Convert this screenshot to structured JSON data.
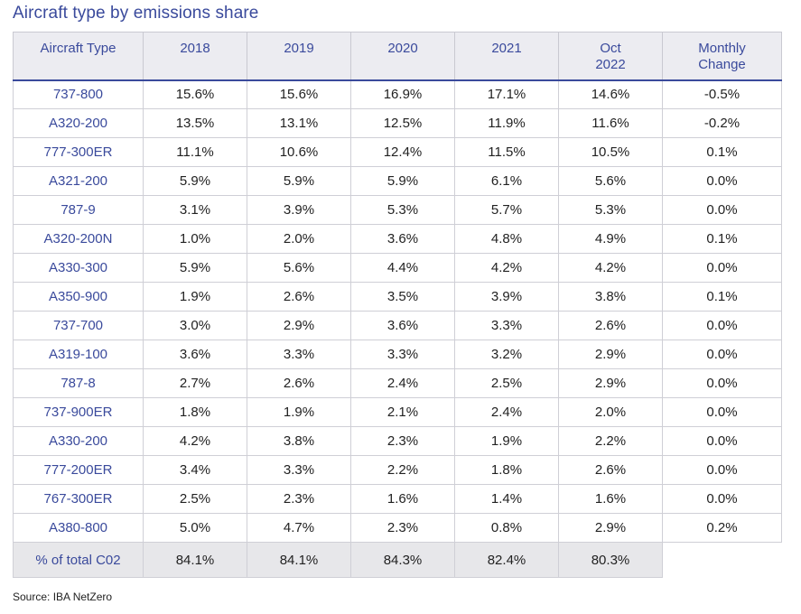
{
  "title": "Aircraft type by emissions share",
  "headers": [
    "Aircraft Type",
    "2018",
    "2019",
    "2020",
    "2021",
    "Oct\n2022",
    "Monthly\nChange"
  ],
  "rows": [
    {
      "type": "737-800",
      "values": [
        "15.6%",
        "15.6%",
        "16.9%",
        "17.1%",
        "14.6%",
        "-0.5%"
      ]
    },
    {
      "type": "A320-200",
      "values": [
        "13.5%",
        "13.1%",
        "12.5%",
        "11.9%",
        "11.6%",
        "-0.2%"
      ]
    },
    {
      "type": "777-300ER",
      "values": [
        "11.1%",
        "10.6%",
        "12.4%",
        "11.5%",
        "10.5%",
        "0.1%"
      ]
    },
    {
      "type": "A321-200",
      "values": [
        "5.9%",
        "5.9%",
        "5.9%",
        "6.1%",
        "5.6%",
        "0.0%"
      ]
    },
    {
      "type": "787-9",
      "values": [
        "3.1%",
        "3.9%",
        "5.3%",
        "5.7%",
        "5.3%",
        "0.0%"
      ]
    },
    {
      "type": "A320-200N",
      "values": [
        "1.0%",
        "2.0%",
        "3.6%",
        "4.8%",
        "4.9%",
        "0.1%"
      ]
    },
    {
      "type": "A330-300",
      "values": [
        "5.9%",
        "5.6%",
        "4.4%",
        "4.2%",
        "4.2%",
        "0.0%"
      ]
    },
    {
      "type": "A350-900",
      "values": [
        "1.9%",
        "2.6%",
        "3.5%",
        "3.9%",
        "3.8%",
        "0.1%"
      ]
    },
    {
      "type": "737-700",
      "values": [
        "3.0%",
        "2.9%",
        "3.6%",
        "3.3%",
        "2.6%",
        "0.0%"
      ]
    },
    {
      "type": "A319-100",
      "values": [
        "3.6%",
        "3.3%",
        "3.3%",
        "3.2%",
        "2.9%",
        "0.0%"
      ]
    },
    {
      "type": "787-8",
      "values": [
        "2.7%",
        "2.6%",
        "2.4%",
        "2.5%",
        "2.9%",
        "0.0%"
      ]
    },
    {
      "type": "737-900ER",
      "values": [
        "1.8%",
        "1.9%",
        "2.1%",
        "2.4%",
        "2.0%",
        "0.0%"
      ]
    },
    {
      "type": "A330-200",
      "values": [
        "4.2%",
        "3.8%",
        "2.3%",
        "1.9%",
        "2.2%",
        "0.0%"
      ]
    },
    {
      "type": "777-200ER",
      "values": [
        "3.4%",
        "3.3%",
        "2.2%",
        "1.8%",
        "2.6%",
        "0.0%"
      ]
    },
    {
      "type": "767-300ER",
      "values": [
        "2.5%",
        "2.3%",
        "1.6%",
        "1.4%",
        "1.6%",
        "0.0%"
      ]
    },
    {
      "type": "A380-800",
      "values": [
        "5.0%",
        "4.7%",
        "2.3%",
        "0.8%",
        "2.9%",
        "0.2%"
      ]
    }
  ],
  "total": {
    "label": "% of total C02",
    "values": [
      "84.1%",
      "84.1%",
      "84.3%",
      "82.4%",
      "80.3%"
    ]
  },
  "source": "Source: IBA NetZero"
}
